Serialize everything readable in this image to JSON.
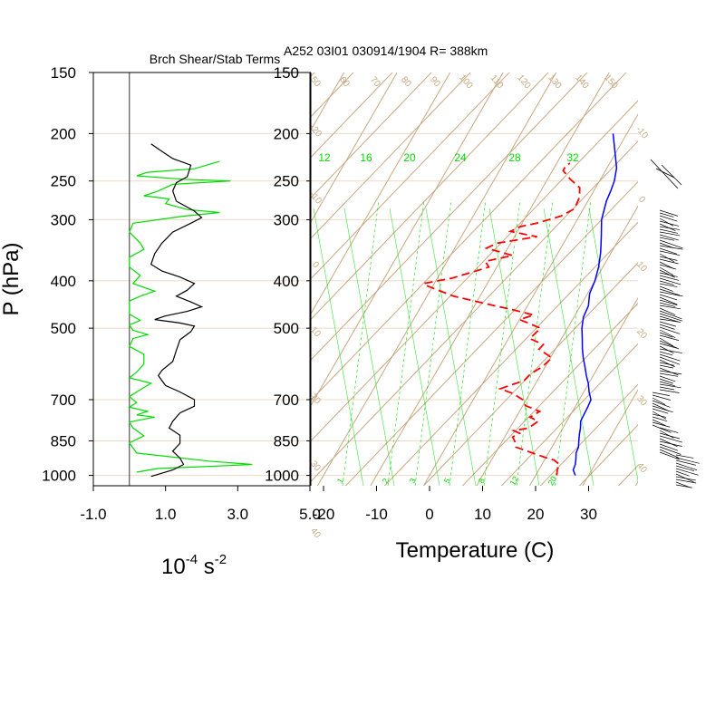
{
  "header": {
    "left_title": "Brch Shear/Stab Terms",
    "right_title": "A252 03I01 030914/1904 R= 388km"
  },
  "colors": {
    "background": "#ffffff",
    "isotherm_and_adiabat": "#c8a882",
    "pressure_line": "#efd9c5",
    "mixing_ratio": "#00dd00",
    "temperature": "#0000ff",
    "dewpoint": "#ff0000",
    "shear_term": "#000000",
    "stability_term": "#00dd00"
  },
  "chart_data": [
    {
      "type": "line",
      "name": "shear-stability-panel",
      "title": "Brch Shear/Stab Terms",
      "xlabel": "10",
      "xlabel_exp": "-4",
      "xlabel_unit": " s",
      "xlabel_unit_exp": "-2",
      "ylabel": "P (hPa)",
      "x_ticks": [
        "-1.0",
        "1.0",
        "3.0",
        "5.0"
      ],
      "x_tick_values": [
        -1,
        1,
        3,
        5
      ],
      "xlim": [
        -1,
        5
      ],
      "zero_reference": 0,
      "y_ticks": [
        150,
        200,
        250,
        300,
        400,
        500,
        700,
        850,
        1000
      ],
      "ylim": [
        1050,
        150
      ],
      "y_scale": "log",
      "series": [
        {
          "role": "shear",
          "color": "#000000",
          "points": [
            [
              0.6,
              210
            ],
            [
              0.8,
              215
            ],
            [
              1.2,
              225
            ],
            [
              1.7,
              232
            ],
            [
              1.6,
              245
            ],
            [
              1.3,
              252
            ],
            [
              1.2,
              262
            ],
            [
              1.3,
              275
            ],
            [
              1.8,
              288
            ],
            [
              2.0,
              297
            ],
            [
              1.7,
              305
            ],
            [
              1.2,
              318
            ],
            [
              0.9,
              335
            ],
            [
              0.7,
              352
            ],
            [
              0.6,
              370
            ],
            [
              0.9,
              382
            ],
            [
              1.4,
              393
            ],
            [
              1.8,
              405
            ],
            [
              1.6,
              418
            ],
            [
              1.3,
              430
            ],
            [
              1.7,
              442
            ],
            [
              2.0,
              452
            ],
            [
              1.6,
              462
            ],
            [
              1.0,
              472
            ],
            [
              0.7,
              480
            ],
            [
              1.4,
              488
            ],
            [
              1.8,
              495
            ],
            [
              1.7,
              508
            ],
            [
              1.4,
              528
            ],
            [
              1.3,
              555
            ],
            [
              1.2,
              585
            ],
            [
              0.9,
              610
            ],
            [
              0.8,
              625
            ],
            [
              0.9,
              640
            ],
            [
              1.0,
              655
            ],
            [
              1.4,
              675
            ],
            [
              1.8,
              700
            ],
            [
              1.8,
              722
            ],
            [
              1.4,
              745
            ],
            [
              1.2,
              775
            ],
            [
              1.1,
              800
            ],
            [
              1.4,
              828
            ],
            [
              1.4,
              860
            ],
            [
              1.2,
              892
            ],
            [
              1.4,
              922
            ],
            [
              1.5,
              950
            ],
            [
              1.2,
              975
            ],
            [
              0.6,
              1005
            ]
          ]
        },
        {
          "role": "stability",
          "color": "#00dd00",
          "points": [
            [
              2.5,
              228
            ],
            [
              1.8,
              236
            ],
            [
              0.5,
              240
            ],
            [
              0.2,
              244
            ],
            [
              1.5,
              248
            ],
            [
              2.8,
              250
            ],
            [
              1.2,
              254
            ],
            [
              0.8,
              262
            ],
            [
              0.4,
              268
            ],
            [
              1.1,
              272
            ],
            [
              1.0,
              278
            ],
            [
              1.6,
              286
            ],
            [
              2.5,
              290
            ],
            [
              1.5,
              295
            ],
            [
              0.1,
              305
            ],
            [
              0.0,
              318
            ],
            [
              0.3,
              335
            ],
            [
              0.4,
              345
            ],
            [
              0.0,
              358
            ],
            [
              0.0,
              375
            ],
            [
              0.3,
              390
            ],
            [
              0.1,
              405
            ],
            [
              0.7,
              420
            ],
            [
              0.3,
              430
            ],
            [
              0.0,
              440
            ],
            [
              0.0,
              468
            ],
            [
              0.3,
              482
            ],
            [
              0.0,
              492
            ],
            [
              0.1,
              505
            ],
            [
              0.5,
              515
            ],
            [
              0.1,
              525
            ],
            [
              0.0,
              545
            ],
            [
              0.4,
              565
            ],
            [
              0.4,
              592
            ],
            [
              0.2,
              615
            ],
            [
              0.0,
              632
            ],
            [
              0.6,
              648
            ],
            [
              0.3,
              668
            ],
            [
              0.0,
              690
            ],
            [
              0.2,
              710
            ],
            [
              0.0,
              725
            ],
            [
              0.5,
              740
            ],
            [
              0.2,
              752
            ],
            [
              0.7,
              760
            ],
            [
              0.0,
              778
            ],
            [
              0.1,
              800
            ],
            [
              0.4,
              830
            ],
            [
              0.0,
              858
            ],
            [
              0.2,
              900
            ],
            [
              2.2,
              935
            ],
            [
              3.4,
              950
            ],
            [
              2.3,
              958
            ],
            [
              0.8,
              968
            ],
            [
              0.2,
              985
            ]
          ]
        }
      ]
    },
    {
      "type": "line",
      "name": "skew-t",
      "title": "A252 03I01 030914/1904 R= 388km",
      "xlabel": "Temperature (C)",
      "x_ticks": [
        "-20",
        "-10",
        "0",
        "10",
        "20",
        "30"
      ],
      "x_tick_values": [
        -20,
        -10,
        0,
        10,
        20,
        30
      ],
      "y_ticks": [
        150,
        200,
        250,
        300,
        400,
        500,
        700,
        850,
        1000
      ],
      "y_scale": "log",
      "mixing_ratio_top_labels": [
        "12",
        "16",
        "20",
        "24",
        "28",
        "32"
      ],
      "mixing_ratio_bottom_labels": [
        "1",
        "2",
        "3",
        "5",
        "8",
        "12",
        "20"
      ],
      "dry_adiabat_top_labels": [
        "50",
        "60",
        "70",
        "80",
        "90",
        "100",
        "110",
        "120",
        "130",
        "140",
        "150"
      ],
      "dry_adiabat_side_labels": [
        "-10",
        "0",
        "10",
        "20",
        "30",
        "40"
      ],
      "isotherm_range": [
        -120,
        40
      ],
      "series": [
        {
          "role": "temperature",
          "color": "#0000ff",
          "points": [
            [
              27.5,
              1000
            ],
            [
              26.5,
              975
            ],
            [
              26.3,
              950
            ],
            [
              25.8,
              925
            ],
            [
              25.2,
              900
            ],
            [
              25.0,
              875
            ],
            [
              24.4,
              850
            ],
            [
              23.8,
              825
            ],
            [
              23.3,
              800
            ],
            [
              22.6,
              775
            ],
            [
              22.5,
              750
            ],
            [
              22.4,
              725
            ],
            [
              22.2,
              700
            ],
            [
              21.0,
              675
            ],
            [
              20.0,
              650
            ],
            [
              18.7,
              625
            ],
            [
              17.5,
              600
            ],
            [
              16.2,
              575
            ],
            [
              15.0,
              550
            ],
            [
              13.9,
              525
            ],
            [
              12.7,
              500
            ],
            [
              11.8,
              475
            ],
            [
              11.5,
              450
            ],
            [
              10.4,
              425
            ],
            [
              10.0,
              400
            ],
            [
              9.2,
              375
            ],
            [
              8.0,
              350
            ],
            [
              6.4,
              325
            ],
            [
              4.6,
              300
            ],
            [
              3.5,
              275
            ],
            [
              3.2,
              262
            ],
            [
              2.8,
              250
            ],
            [
              1.8,
              235
            ],
            [
              0.0,
              220
            ],
            [
              -2.6,
              200
            ]
          ]
        },
        {
          "role": "dewpoint",
          "color": "#ff0000",
          "points": [
            [
              24.0,
              1000
            ],
            [
              23.5,
              975
            ],
            [
              23.3,
              950
            ],
            [
              21.8,
              930
            ],
            [
              20.0,
              920
            ],
            [
              17.0,
              900
            ],
            [
              13.2,
              875
            ],
            [
              12.3,
              850
            ],
            [
              11.5,
              835
            ],
            [
              12.4,
              820
            ],
            [
              11.0,
              810
            ],
            [
              13.5,
              800
            ],
            [
              14.6,
              775
            ],
            [
              12.6,
              760
            ],
            [
              13.8,
              740
            ],
            [
              10.5,
              720
            ],
            [
              9.3,
              700
            ],
            [
              6.8,
              680
            ],
            [
              3.9,
              665
            ],
            [
              6.0,
              650
            ],
            [
              7.5,
              640
            ],
            [
              8.0,
              620
            ],
            [
              9.4,
              600
            ],
            [
              10.3,
              575
            ],
            [
              6.9,
              552
            ],
            [
              7.2,
              540
            ],
            [
              4.0,
              525
            ],
            [
              4.9,
              500
            ],
            [
              0.0,
              480
            ],
            [
              2.2,
              470
            ],
            [
              -2.5,
              458
            ],
            [
              -7.0,
              448
            ],
            [
              -15.0,
              430
            ],
            [
              -21.0,
              410
            ],
            [
              -22.0,
              405
            ],
            [
              -17.2,
              395
            ],
            [
              -11.5,
              375
            ],
            [
              -12.8,
              365
            ],
            [
              -8.3,
              355
            ],
            [
              -14.0,
              343
            ],
            [
              -12.5,
              335
            ],
            [
              -5.7,
              325
            ],
            [
              -11.3,
              317
            ],
            [
              -10.0,
              310
            ],
            [
              -7.2,
              305
            ],
            [
              -3.5,
              295
            ],
            [
              -1.7,
              285
            ],
            [
              -2.0,
              270
            ],
            [
              -3.0,
              258
            ],
            [
              -5.7,
              248
            ],
            [
              -8.0,
              238
            ],
            [
              -8.0,
              232
            ],
            [
              -7.5,
              230
            ]
          ]
        }
      ]
    }
  ]
}
